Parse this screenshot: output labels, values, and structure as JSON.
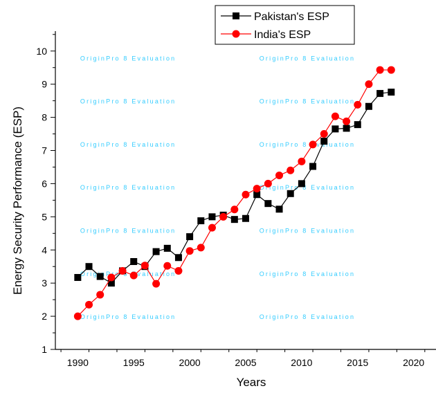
{
  "chart_data": {
    "type": "line",
    "xlabel": "Years",
    "ylabel": "Energy Security Performance (ESP)",
    "xlim": [
      1988,
      2022
    ],
    "ylim": [
      1,
      10.6
    ],
    "x_ticks": [
      1990,
      1995,
      2000,
      2005,
      2010,
      2015,
      2020
    ],
    "y_ticks": [
      1,
      2,
      3,
      4,
      5,
      6,
      7,
      8,
      9,
      10
    ],
    "grid": false,
    "legend_position": "top-right",
    "x": [
      1990,
      1991,
      1992,
      1993,
      1994,
      1995,
      1996,
      1997,
      1998,
      1999,
      2000,
      2001,
      2002,
      2003,
      2004,
      2005,
      2006,
      2007,
      2008,
      2009,
      2010,
      2011,
      2012,
      2013,
      2014,
      2015,
      2016,
      2017,
      2018
    ],
    "series": [
      {
        "name": "Pakistan's ESP",
        "color": "#000000",
        "marker": "square",
        "values": [
          3.17,
          3.5,
          3.2,
          3.0,
          3.37,
          3.65,
          3.5,
          3.95,
          4.05,
          3.77,
          4.4,
          4.88,
          5.0,
          5.05,
          4.92,
          4.95,
          5.67,
          5.4,
          5.23,
          5.7,
          6.0,
          6.52,
          7.28,
          7.65,
          7.67,
          7.78,
          8.33,
          8.72,
          8.76
        ]
      },
      {
        "name": "India's ESP",
        "color": "#ff0000",
        "marker": "circle",
        "values": [
          2.0,
          2.35,
          2.65,
          3.17,
          3.37,
          3.23,
          3.53,
          2.98,
          3.52,
          3.37,
          3.97,
          4.07,
          4.67,
          5.0,
          5.22,
          5.67,
          5.85,
          6.0,
          6.25,
          6.4,
          6.67,
          7.18,
          7.5,
          8.03,
          7.88,
          8.38,
          9.0,
          9.43,
          9.43
        ]
      }
    ],
    "watermark": "OriginPro 8 Evaluation"
  }
}
